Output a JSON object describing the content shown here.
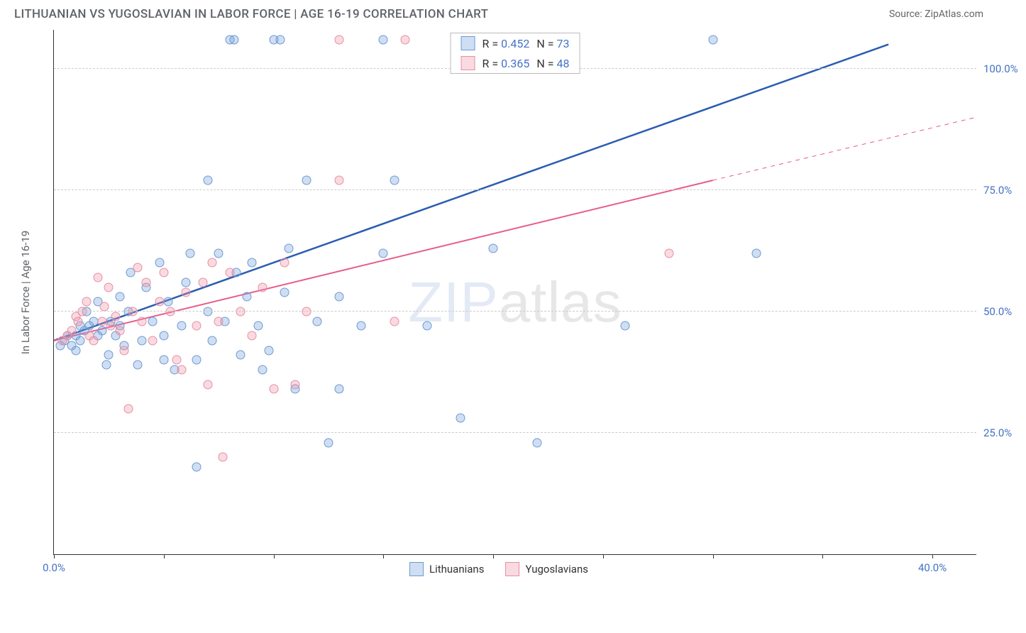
{
  "title": "LITHUANIAN VS YUGOSLAVIAN IN LABOR FORCE | AGE 16-19 CORRELATION CHART",
  "source": "Source: ZipAtlas.com",
  "watermark_bold": "ZIP",
  "watermark_thin": "atlas",
  "y_axis": {
    "title": "In Labor Force | Age 16-19",
    "min": 0,
    "max": 108,
    "ticks": [
      25,
      50,
      75,
      100
    ],
    "tick_labels": [
      "25.0%",
      "50.0%",
      "75.0%",
      "100.0%"
    ]
  },
  "x_axis": {
    "min": 0,
    "max": 42,
    "ticks": [
      0,
      5,
      10,
      15,
      20,
      25,
      30,
      35,
      40
    ],
    "tick_labels_shown": {
      "0": "0.0%",
      "40": "40.0%"
    }
  },
  "series": [
    {
      "id": "lithuanians",
      "label": "Lithuanians",
      "color_fill": "rgba(120,160,220,0.35)",
      "color_stroke": "#6b9bd1",
      "trend_color": "#2a5db0",
      "trend_width": 2.5,
      "r_value": "0.452",
      "n_value": "73",
      "trend": {
        "x1": 0,
        "y1": 44,
        "x2": 38,
        "y2": 105
      },
      "points": [
        [
          0.3,
          43
        ],
        [
          0.5,
          44
        ],
        [
          0.6,
          45
        ],
        [
          0.8,
          43
        ],
        [
          1.0,
          42
        ],
        [
          1.0,
          45
        ],
        [
          1.2,
          44
        ],
        [
          1.2,
          47
        ],
        [
          1.4,
          46
        ],
        [
          1.5,
          50
        ],
        [
          1.6,
          47
        ],
        [
          1.8,
          48
        ],
        [
          2.0,
          45
        ],
        [
          2.0,
          52
        ],
        [
          2.2,
          46
        ],
        [
          2.4,
          39
        ],
        [
          2.5,
          41
        ],
        [
          2.6,
          48
        ],
        [
          2.8,
          45
        ],
        [
          3.0,
          47
        ],
        [
          3.0,
          53
        ],
        [
          3.2,
          43
        ],
        [
          3.4,
          50
        ],
        [
          3.5,
          58
        ],
        [
          3.8,
          39
        ],
        [
          4.0,
          44
        ],
        [
          4.2,
          55
        ],
        [
          4.5,
          48
        ],
        [
          4.8,
          60
        ],
        [
          5.0,
          45
        ],
        [
          5.0,
          40
        ],
        [
          5.2,
          52
        ],
        [
          5.5,
          38
        ],
        [
          5.8,
          47
        ],
        [
          6.0,
          56
        ],
        [
          6.2,
          62
        ],
        [
          6.5,
          18
        ],
        [
          6.5,
          40
        ],
        [
          7.0,
          77
        ],
        [
          7.0,
          50
        ],
        [
          7.2,
          44
        ],
        [
          7.5,
          62
        ],
        [
          7.8,
          48
        ],
        [
          8.0,
          106
        ],
        [
          8.2,
          106
        ],
        [
          8.3,
          58
        ],
        [
          8.5,
          41
        ],
        [
          8.8,
          53
        ],
        [
          9.0,
          60
        ],
        [
          9.3,
          47
        ],
        [
          9.5,
          38
        ],
        [
          9.8,
          42
        ],
        [
          10.0,
          106
        ],
        [
          10.3,
          106
        ],
        [
          10.5,
          54
        ],
        [
          10.7,
          63
        ],
        [
          11.0,
          34
        ],
        [
          11.5,
          77
        ],
        [
          12.0,
          48
        ],
        [
          12.5,
          23
        ],
        [
          13.0,
          34
        ],
        [
          13.0,
          53
        ],
        [
          14.0,
          47
        ],
        [
          15.0,
          62
        ],
        [
          15.5,
          77
        ],
        [
          15.0,
          106
        ],
        [
          17.0,
          47
        ],
        [
          18.5,
          28
        ],
        [
          20.0,
          63
        ],
        [
          22.0,
          23
        ],
        [
          26.0,
          47
        ],
        [
          30.0,
          106
        ],
        [
          32.0,
          62
        ]
      ]
    },
    {
      "id": "yugoslavians",
      "label": "Yugoslavians",
      "color_fill": "rgba(240,150,170,0.35)",
      "color_stroke": "#e58fa3",
      "trend_color": "#e85a8a",
      "trend_width": 2,
      "r_value": "0.365",
      "n_value": "48",
      "trend": {
        "x1": 0,
        "y1": 44,
        "x2": 30,
        "y2": 77
      },
      "trend_dashed_ext": {
        "x1": 30,
        "y1": 77,
        "x2": 42,
        "y2": 90
      },
      "points": [
        [
          0.4,
          44
        ],
        [
          0.6,
          45
        ],
        [
          0.8,
          46
        ],
        [
          1.0,
          49
        ],
        [
          1.1,
          48
        ],
        [
          1.3,
          50
        ],
        [
          1.5,
          52
        ],
        [
          1.6,
          45
        ],
        [
          1.8,
          44
        ],
        [
          2.0,
          57
        ],
        [
          2.2,
          48
        ],
        [
          2.3,
          51
        ],
        [
          2.5,
          55
        ],
        [
          2.6,
          47
        ],
        [
          2.8,
          49
        ],
        [
          3.0,
          46
        ],
        [
          3.2,
          42
        ],
        [
          3.4,
          30
        ],
        [
          3.6,
          50
        ],
        [
          3.8,
          59
        ],
        [
          4.0,
          48
        ],
        [
          4.2,
          56
        ],
        [
          4.5,
          44
        ],
        [
          4.8,
          52
        ],
        [
          5.0,
          58
        ],
        [
          5.3,
          50
        ],
        [
          5.6,
          40
        ],
        [
          5.8,
          38
        ],
        [
          6.0,
          54
        ],
        [
          6.5,
          47
        ],
        [
          6.8,
          56
        ],
        [
          7.0,
          35
        ],
        [
          7.2,
          60
        ],
        [
          7.5,
          48
        ],
        [
          7.7,
          20
        ],
        [
          8.0,
          58
        ],
        [
          8.5,
          50
        ],
        [
          9.0,
          45
        ],
        [
          9.5,
          55
        ],
        [
          10.0,
          34
        ],
        [
          10.5,
          60
        ],
        [
          11.0,
          35
        ],
        [
          11.5,
          50
        ],
        [
          13.0,
          106
        ],
        [
          13.0,
          77
        ],
        [
          15.5,
          48
        ],
        [
          16.0,
          106
        ],
        [
          28.0,
          62
        ]
      ]
    }
  ],
  "colors": {
    "title": "#5f6368",
    "axis_label": "#4472c4",
    "grid": "#cccccc",
    "border": "#333333",
    "background": "#ffffff"
  },
  "legend_top_labels": {
    "r": "R =",
    "n": "N ="
  }
}
